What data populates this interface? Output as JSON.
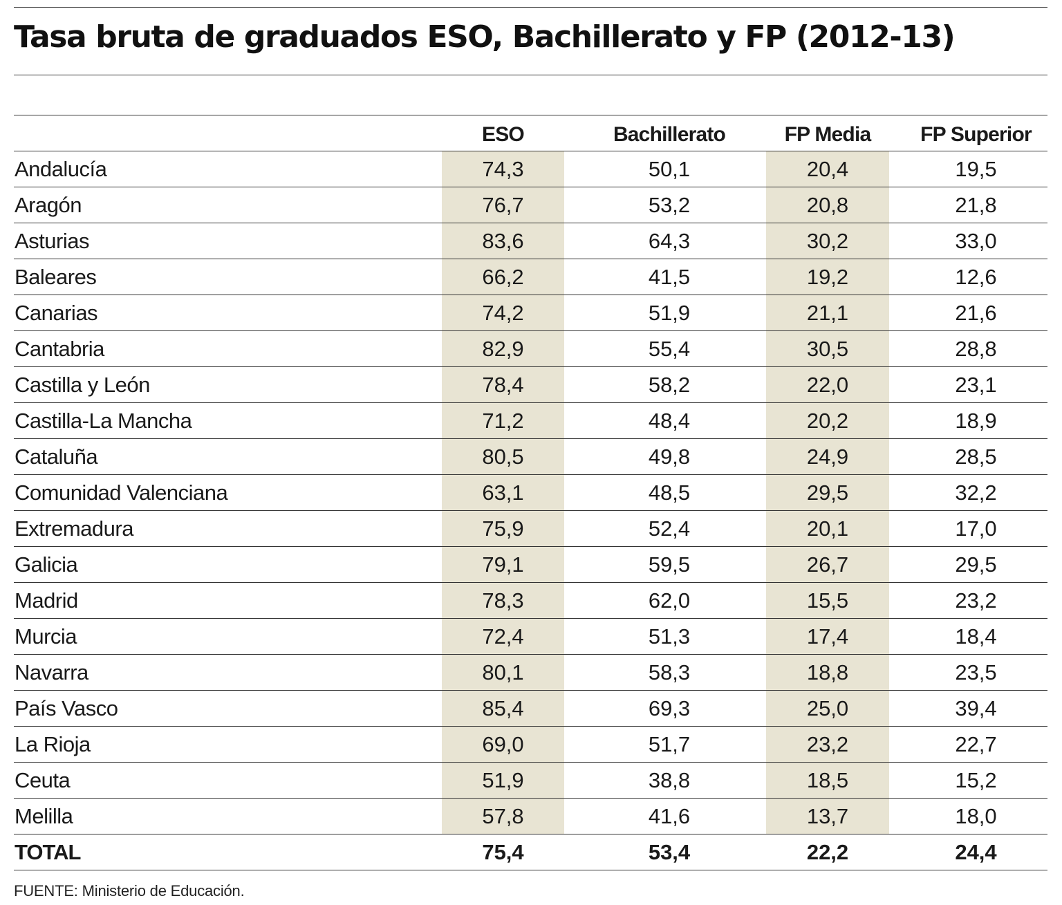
{
  "title": "Tasa bruta de graduados ESO, Bachillerato y FP (2012-13)",
  "source": "FUENTE: Ministerio de Educación.",
  "colors": {
    "shade": "#e8e4d3",
    "rule": "#333333",
    "text": "#1a1a1a"
  },
  "chart_data": {
    "type": "table",
    "title": "Tasa bruta de graduados ESO, Bachillerato y FP (2012-13)",
    "columns": [
      "ESO",
      "Bachillerato",
      "FP Media",
      "FP Superior"
    ],
    "rows": [
      {
        "region": "Andalucía",
        "values": [
          "74,3",
          "50,1",
          "20,4",
          "19,5"
        ]
      },
      {
        "region": "Aragón",
        "values": [
          "76,7",
          "53,2",
          "20,8",
          "21,8"
        ]
      },
      {
        "region": "Asturias",
        "values": [
          "83,6",
          "64,3",
          "30,2",
          "33,0"
        ]
      },
      {
        "region": "Baleares",
        "values": [
          "66,2",
          "41,5",
          "19,2",
          "12,6"
        ]
      },
      {
        "region": "Canarias",
        "values": [
          "74,2",
          "51,9",
          "21,1",
          "21,6"
        ]
      },
      {
        "region": "Cantabria",
        "values": [
          "82,9",
          "55,4",
          "30,5",
          "28,8"
        ]
      },
      {
        "region": "Castilla y León",
        "values": [
          "78,4",
          "58,2",
          "22,0",
          "23,1"
        ]
      },
      {
        "region": "Castilla-La Mancha",
        "values": [
          "71,2",
          "48,4",
          "20,2",
          "18,9"
        ]
      },
      {
        "region": "Cataluña",
        "values": [
          "80,5",
          "49,8",
          "24,9",
          "28,5"
        ]
      },
      {
        "region": "Comunidad Valenciana",
        "values": [
          "63,1",
          "48,5",
          "29,5",
          "32,2"
        ]
      },
      {
        "region": "Extremadura",
        "values": [
          "75,9",
          "52,4",
          "20,1",
          "17,0"
        ]
      },
      {
        "region": "Galicia",
        "values": [
          "79,1",
          "59,5",
          "26,7",
          "29,5"
        ]
      },
      {
        "region": "Madrid",
        "values": [
          "78,3",
          "62,0",
          "15,5",
          "23,2"
        ]
      },
      {
        "region": "Murcia",
        "values": [
          "72,4",
          "51,3",
          "17,4",
          "18,4"
        ]
      },
      {
        "region": "Navarra",
        "values": [
          "80,1",
          "58,3",
          "18,8",
          "23,5"
        ]
      },
      {
        "region": "País Vasco",
        "values": [
          "85,4",
          "69,3",
          "25,0",
          "39,4"
        ]
      },
      {
        "region": "La Rioja",
        "values": [
          "69,0",
          "51,7",
          "23,2",
          "22,7"
        ]
      },
      {
        "region": "Ceuta",
        "values": [
          "51,9",
          "38,8",
          "18,5",
          "15,2"
        ]
      },
      {
        "region": "Melilla",
        "values": [
          "57,8",
          "41,6",
          "13,7",
          "18,0"
        ]
      }
    ],
    "total": {
      "region": "TOTAL",
      "values": [
        "75,4",
        "53,4",
        "22,2",
        "24,4"
      ]
    }
  }
}
